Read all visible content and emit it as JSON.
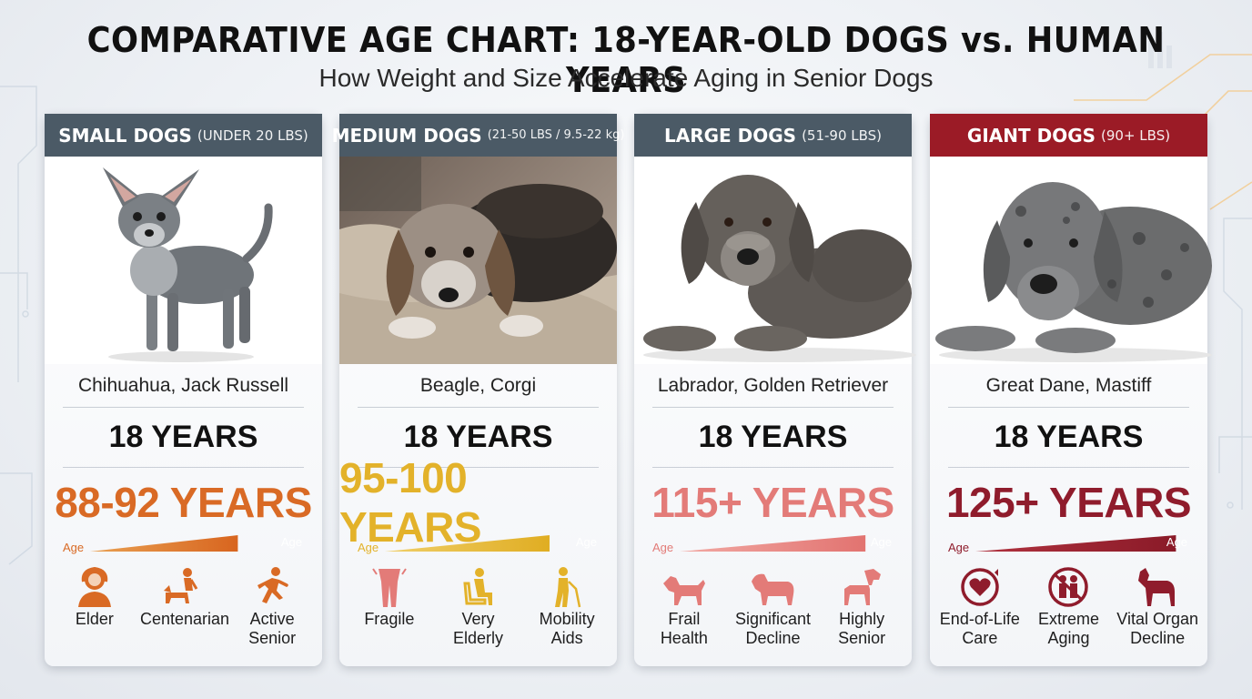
{
  "title": "COMPARATIVE AGE CHART: 18-YEAR-OLD DOGS vs. HUMAN YEARS",
  "subtitle": "How Weight and Size Accelerate Aging in Senior Dogs",
  "age_axis_label": "Age",
  "cards": [
    {
      "header": "SMALL DOGS",
      "header_sub": "(UNDER 20 LBS)",
      "header_color": "#4b5a66",
      "accent": "#d96a25",
      "breeds": "Chihuahua, Jack Russell",
      "dog_age": "18 YEARS",
      "human_age": "88-92 YEARS",
      "human_age_fill": 0.7,
      "traits": [
        {
          "icon": "elder-woman-icon",
          "line1": "Elder",
          "line2": ""
        },
        {
          "icon": "person-with-dog-icon",
          "line1": "Centenarian",
          "line2": ""
        },
        {
          "icon": "running-person-icon",
          "line1": "Active",
          "line2": "Senior"
        }
      ]
    },
    {
      "header": "MEDIUM DOGS",
      "header_sub": "(21-50 LBS / 9.5-22 kg)",
      "header_color": "#4b5a66",
      "accent": "#e3b22a",
      "breeds": "Beagle, Corgi",
      "dog_age": "18 YEARS",
      "human_age": "95-100 YEARS",
      "human_age_fill": 0.78,
      "traits": [
        {
          "icon": "fragile-figure-icon",
          "line1": "Fragile",
          "line2": ""
        },
        {
          "icon": "seated-elderly-icon",
          "line1": "Very",
          "line2": "Elderly"
        },
        {
          "icon": "person-with-cane-icon",
          "line1": "Mobility",
          "line2": "Aids"
        }
      ]
    },
    {
      "header": "LARGE DOGS",
      "header_sub": "(51-90 LBS)",
      "header_color": "#4b5a66",
      "accent": "#e37b78",
      "breeds": "Labrador, Golden Retriever",
      "dog_age": "18 YEARS",
      "human_age": "115+ YEARS",
      "human_age_fill": 0.88,
      "traits": [
        {
          "icon": "dog-icon",
          "line1": "Frail",
          "line2": "Health"
        },
        {
          "icon": "dog-icon",
          "line1": "Significant",
          "line2": "Decline"
        },
        {
          "icon": "dog-icon",
          "line1": "Highly",
          "line2": "Senior"
        }
      ]
    },
    {
      "header": "GIANT DOGS",
      "header_sub": "(90+ LBS)",
      "header_color": "#9b1b26",
      "accent": "#8f1c2c",
      "breeds": "Great Dane, Mastiff",
      "dog_age": "18 YEARS",
      "human_age": "125+ YEARS",
      "human_age_fill": 0.95,
      "traits": [
        {
          "icon": "heart-cycle-icon",
          "line1": "End-of-Life",
          "line2": "Care"
        },
        {
          "icon": "aging-couple-icon",
          "line1": "Extreme",
          "line2": "Aging"
        },
        {
          "icon": "dog-icon",
          "line1": "Vital Organ",
          "line2": "Decline"
        }
      ]
    }
  ]
}
